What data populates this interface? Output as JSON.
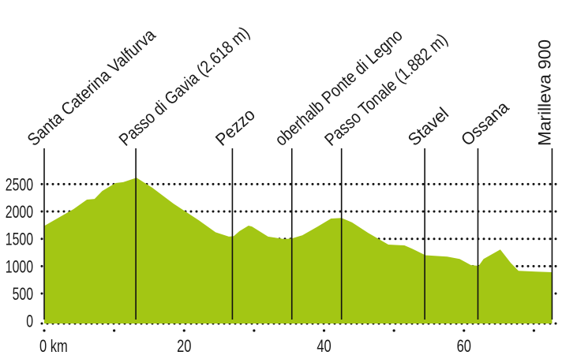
{
  "chart_data": {
    "type": "area",
    "title": "",
    "xlabel": "",
    "ylabel": "",
    "x_unit": "km",
    "xlim": [
      0,
      72.6
    ],
    "ylim": [
      0,
      2500
    ],
    "x_ticks": [
      0,
      20,
      40,
      60
    ],
    "x_tick_labels": [
      "0 km",
      "20",
      "40",
      "60"
    ],
    "x_minor_ticks": [
      10,
      30,
      50,
      70
    ],
    "y_ticks": [
      0,
      500,
      1000,
      1500,
      2000,
      2500
    ],
    "y_tick_labels": [
      "0",
      "500",
      "1000",
      "1500",
      "2000",
      "2500"
    ],
    "grid": "horizontal dotted",
    "fill_color": "#a3c614",
    "series": [
      {
        "x": [
          0,
          4.2,
          6.1,
          7.2,
          8.3,
          10.2,
          11.3,
          13.2,
          15.5,
          18.5,
          20,
          22.2,
          24.5,
          26.4,
          27.1,
          27.9,
          29.2,
          29.7,
          32,
          34.3,
          35.4,
          36.9,
          39.1,
          41,
          42.5,
          44,
          46.3,
          49.2,
          51.5,
          52.6,
          54.5,
          57.6,
          59.4,
          61,
          62.1,
          62.8,
          65.2,
          66.7,
          67.8,
          70.3,
          72.6
        ],
        "y": [
          1735,
          2043,
          2216,
          2230,
          2375,
          2520,
          2535,
          2618,
          2430,
          2140,
          2015,
          1830,
          1620,
          1540,
          1550,
          1640,
          1740,
          1725,
          1540,
          1495,
          1505,
          1565,
          1725,
          1870,
          1882,
          1800,
          1610,
          1395,
          1380,
          1320,
          1200,
          1175,
          1130,
          1020,
          1005,
          1130,
          1305,
          1060,
          915,
          900,
          890
        ]
      }
    ],
    "waypoints": [
      {
        "km": 0,
        "label": "Santa Caterina Valfurva"
      },
      {
        "km": 13.1,
        "label": "Passo di Gavia (2.618 m)"
      },
      {
        "km": 26.9,
        "label": "Pezzo"
      },
      {
        "km": 35.4,
        "label": "oberhalb Ponte di Legno"
      },
      {
        "km": 42.5,
        "label": "Passo Tonale (1.882 m)"
      },
      {
        "km": 54.4,
        "label": "Stavel"
      },
      {
        "km": 62.0,
        "label": "Ossana"
      },
      {
        "km": 72.6,
        "label": "Marilleva 900"
      }
    ]
  }
}
